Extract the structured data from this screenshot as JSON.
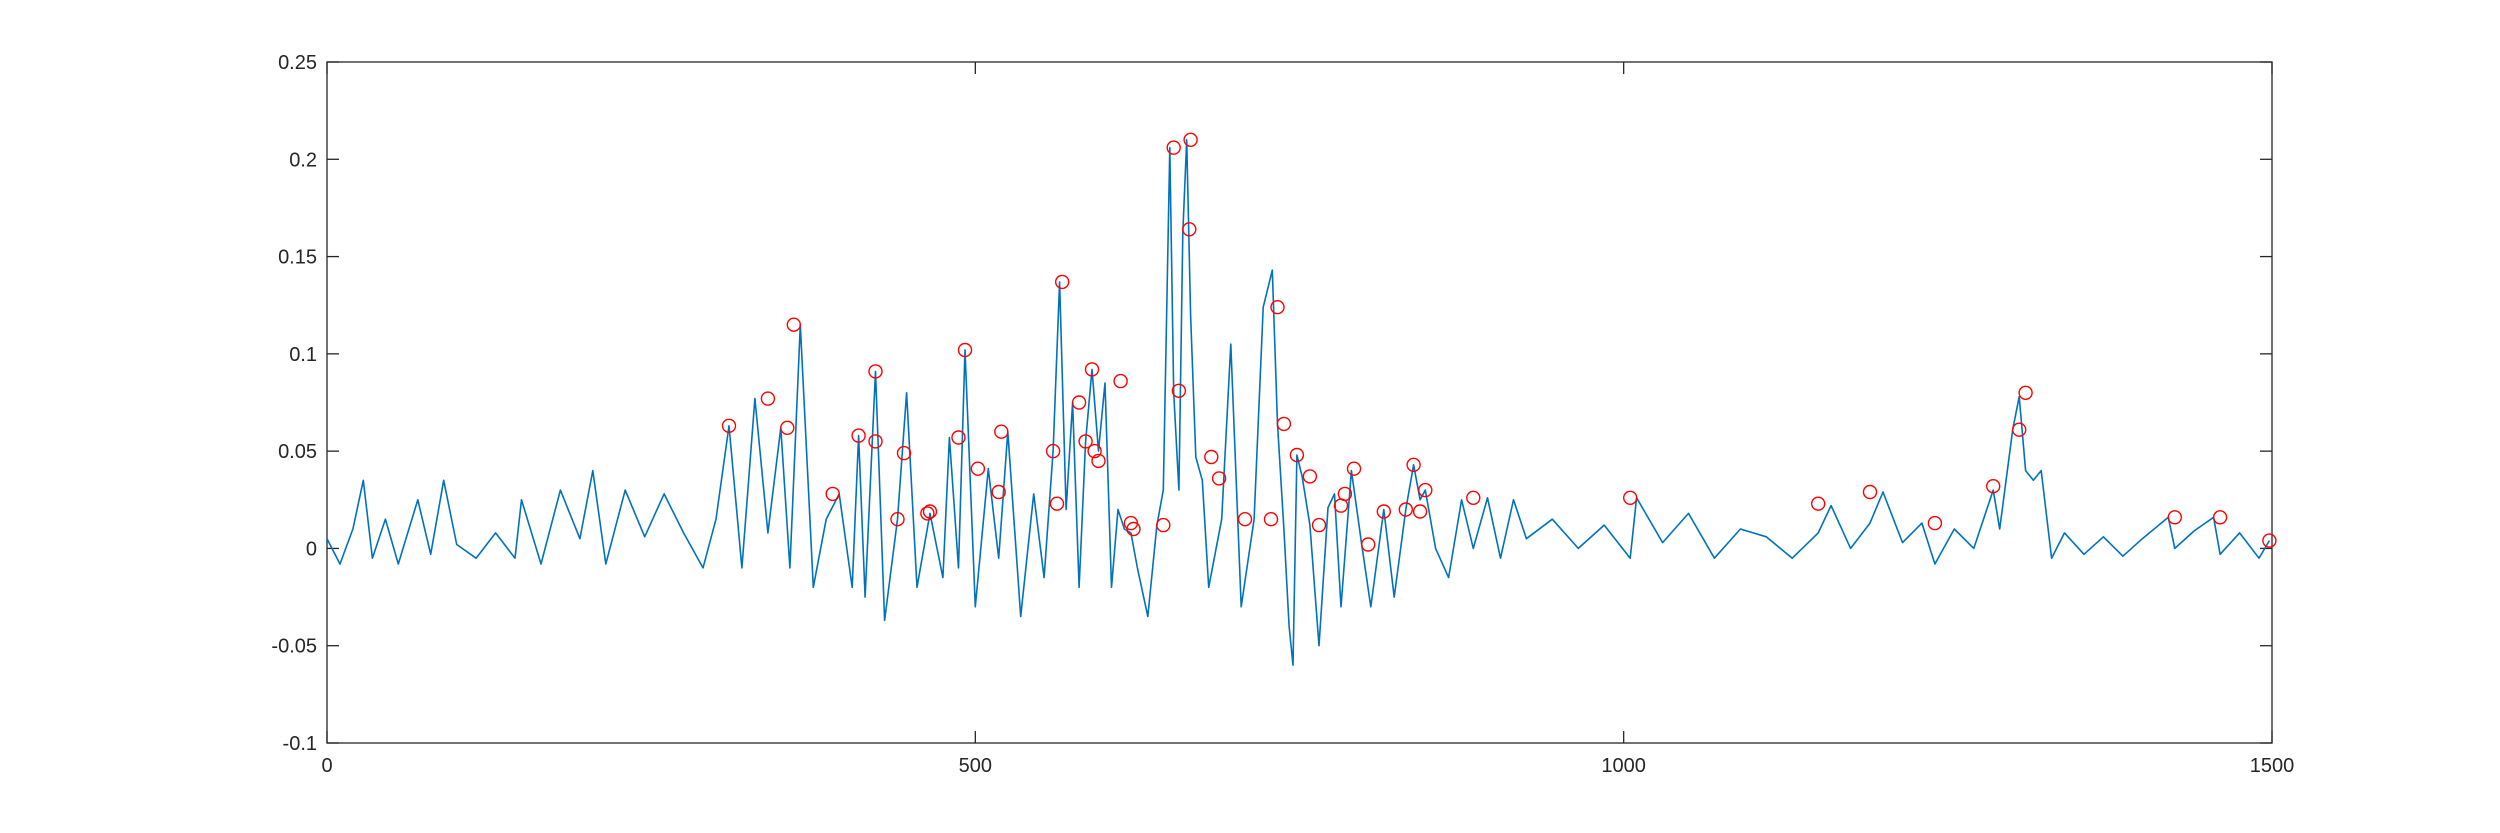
{
  "chart_data": {
    "type": "line",
    "title": "",
    "xlabel": "",
    "ylabel": "",
    "xlim": [
      0,
      1500
    ],
    "ylim": [
      -0.1,
      0.25
    ],
    "x_ticks": [
      0,
      500,
      1000,
      1500
    ],
    "x_tick_labels": [
      "0",
      "500",
      "1000",
      "1500"
    ],
    "y_ticks": [
      -0.1,
      -0.05,
      0,
      0.05,
      0.1,
      0.15,
      0.2,
      0.25
    ],
    "y_tick_labels": [
      "-0.1",
      "-0.05",
      "0",
      "0.05",
      "0.1",
      "0.15",
      "0.2",
      "0.25"
    ],
    "grid": false,
    "box": true,
    "colors": {
      "line": "#0072BD",
      "marker": "#FF0000",
      "axis": "#262626",
      "background": "#FFFFFF"
    },
    "series": [
      {
        "style": "line",
        "x": [
          0,
          10,
          20,
          28,
          35,
          45,
          55,
          70,
          80,
          90,
          100,
          115,
          130,
          145,
          150,
          165,
          180,
          195,
          205,
          215,
          230,
          245,
          260,
          275,
          290,
          300,
          310,
          320,
          330,
          340,
          350,
          357,
          365,
          375,
          385,
          395,
          405,
          410,
          415,
          423,
          430,
          440,
          447,
          455,
          465,
          475,
          480,
          487,
          492,
          500,
          510,
          518,
          525,
          535,
          545,
          553,
          560,
          565,
          570,
          575,
          580,
          585,
          590,
          595,
          600,
          605,
          610,
          615,
          620,
          625,
          633,
          640,
          645,
          650,
          653,
          657,
          660,
          663,
          666,
          670,
          675,
          680,
          690,
          697,
          705,
          715,
          722,
          729,
          733,
          738,
          742,
          745,
          748,
          752,
          758,
          765,
          772,
          777,
          782,
          790,
          798,
          805,
          815,
          823,
          832,
          838,
          843,
          847,
          855,
          865,
          875,
          884,
          895,
          905,
          915,
          925,
          945,
          965,
          985,
          1005,
          1010,
          1030,
          1050,
          1070,
          1090,
          1110,
          1130,
          1150,
          1160,
          1175,
          1190,
          1200,
          1215,
          1230,
          1240,
          1255,
          1270,
          1285,
          1290,
          1300,
          1305,
          1310,
          1316,
          1322,
          1330,
          1340,
          1355,
          1370,
          1385,
          1400,
          1420,
          1425,
          1440,
          1455,
          1460,
          1475,
          1490,
          1498
        ],
        "y": [
          0.005,
          -0.008,
          0.01,
          0.035,
          -0.005,
          0.015,
          -0.008,
          0.025,
          -0.003,
          0.035,
          0.002,
          -0.005,
          0.008,
          -0.005,
          0.025,
          -0.008,
          0.03,
          0.005,
          0.04,
          -0.008,
          0.03,
          0.006,
          0.028,
          0.008,
          -0.01,
          0.015,
          0.063,
          -0.01,
          0.077,
          0.008,
          0.062,
          -0.01,
          0.115,
          -0.02,
          0.015,
          0.028,
          -0.02,
          0.058,
          -0.025,
          0.091,
          -0.037,
          0.015,
          0.08,
          -0.02,
          0.018,
          -0.015,
          0.057,
          -0.01,
          0.102,
          -0.03,
          0.041,
          -0.005,
          0.06,
          -0.035,
          0.028,
          -0.015,
          0.05,
          0.137,
          0.02,
          0.075,
          -0.02,
          0.055,
          0.092,
          0.05,
          0.085,
          -0.02,
          0.02,
          0.01,
          0.008,
          -0.01,
          -0.035,
          0.012,
          0.03,
          0.206,
          0.08,
          0.03,
          0.162,
          0.21,
          0.12,
          0.047,
          0.035,
          -0.02,
          0.015,
          0.105,
          -0.03,
          0.015,
          0.124,
          0.143,
          0.064,
          0.01,
          -0.04,
          -0.06,
          0.048,
          0.037,
          0.012,
          -0.05,
          0.021,
          0.028,
          -0.03,
          0.04,
          0.002,
          -0.03,
          0.02,
          -0.025,
          0.02,
          0.043,
          0.025,
          0.03,
          0.0,
          -0.015,
          0.025,
          0.0,
          0.026,
          -0.005,
          0.025,
          0.005,
          0.015,
          0.0,
          0.012,
          -0.005,
          0.026,
          0.003,
          0.018,
          -0.005,
          0.01,
          0.006,
          -0.005,
          0.008,
          0.022,
          0.0,
          0.013,
          0.029,
          0.003,
          0.013,
          -0.008,
          0.01,
          0.0,
          0.03,
          0.01,
          0.061,
          0.078,
          0.04,
          0.035,
          0.04,
          -0.005,
          0.008,
          -0.003,
          0.006,
          -0.004,
          0.005,
          0.016,
          0.0,
          0.009,
          0.016,
          -0.003,
          0.008,
          -0.005,
          0.004
        ]
      },
      {
        "style": "markers",
        "marker": "circle",
        "x": [
          310,
          340,
          355,
          360,
          390,
          410,
          423,
          423,
          440,
          445,
          463,
          465,
          487,
          492,
          502,
          518,
          520,
          560,
          563,
          567,
          580,
          585,
          590,
          592,
          595,
          612,
          620,
          622,
          645,
          653,
          657,
          665,
          666,
          682,
          688,
          708,
          728,
          733,
          738,
          748,
          758,
          765,
          782,
          785,
          792,
          803,
          815,
          832,
          838,
          843,
          847,
          884,
          1005,
          1150,
          1190,
          1240,
          1285,
          1305,
          1310,
          1425,
          1460,
          1498
        ],
        "y": [
          0.063,
          0.077,
          0.062,
          0.115,
          0.028,
          0.058,
          0.055,
          0.091,
          0.015,
          0.049,
          0.018,
          0.019,
          0.057,
          0.102,
          0.041,
          0.029,
          0.06,
          0.05,
          0.023,
          0.137,
          0.075,
          0.055,
          0.092,
          0.05,
          0.045,
          0.086,
          0.013,
          0.01,
          0.012,
          0.206,
          0.081,
          0.164,
          0.21,
          0.047,
          0.036,
          0.015,
          0.015,
          0.124,
          0.064,
          0.048,
          0.037,
          0.012,
          0.022,
          0.028,
          0.041,
          0.002,
          0.019,
          0.02,
          0.043,
          0.019,
          0.03,
          0.026,
          0.026,
          0.023,
          0.029,
          0.013,
          0.032,
          0.061,
          0.08,
          0.016,
          0.016,
          0.004
        ]
      }
    ]
  }
}
